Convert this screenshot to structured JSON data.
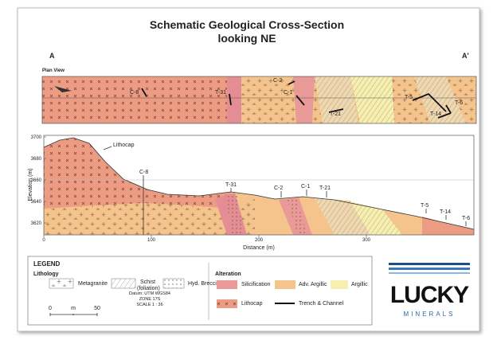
{
  "header": {
    "title": "Schematic Geological Cross-Section",
    "subtitle": "looking NE",
    "end_left": "A",
    "end_right": "A'"
  },
  "plan_view": {
    "label": "Plan View",
    "labels": [
      "C-8",
      "T-31",
      "C-2",
      "C-1",
      "T-21",
      "T-5",
      "T-14",
      "T-6"
    ]
  },
  "cross_section": {
    "y_label": "Elevation (m)",
    "x_label": "Distance (m)",
    "yticks": [
      3700,
      3680,
      3660,
      3640,
      3620
    ],
    "xticks": [
      0,
      100,
      200,
      300
    ],
    "labels": [
      "Lithocap",
      "C-8",
      "T-31",
      "C-2",
      "C-1",
      "T-21",
      "T-5",
      "T-14",
      "T-6"
    ]
  },
  "legend": {
    "title": "LEGEND",
    "lithology": "Lithology",
    "lithology_items": [
      "Metagranite",
      "Schist",
      "(foliation)",
      "Hyd. Breccia"
    ],
    "alteration": "Alteration",
    "alteration_items": [
      "Silicification",
      "Adv. Argillic",
      "Argillic",
      "Lithocap",
      "Trench & Channel"
    ],
    "scale": [
      "0",
      "m",
      "50"
    ],
    "datum": [
      "Datum: UTM WGS84",
      "ZONE 17S",
      "SCALE 1 : 36"
    ]
  },
  "logo": {
    "name": "LUCKY",
    "tagline": "MINERALS"
  }
}
